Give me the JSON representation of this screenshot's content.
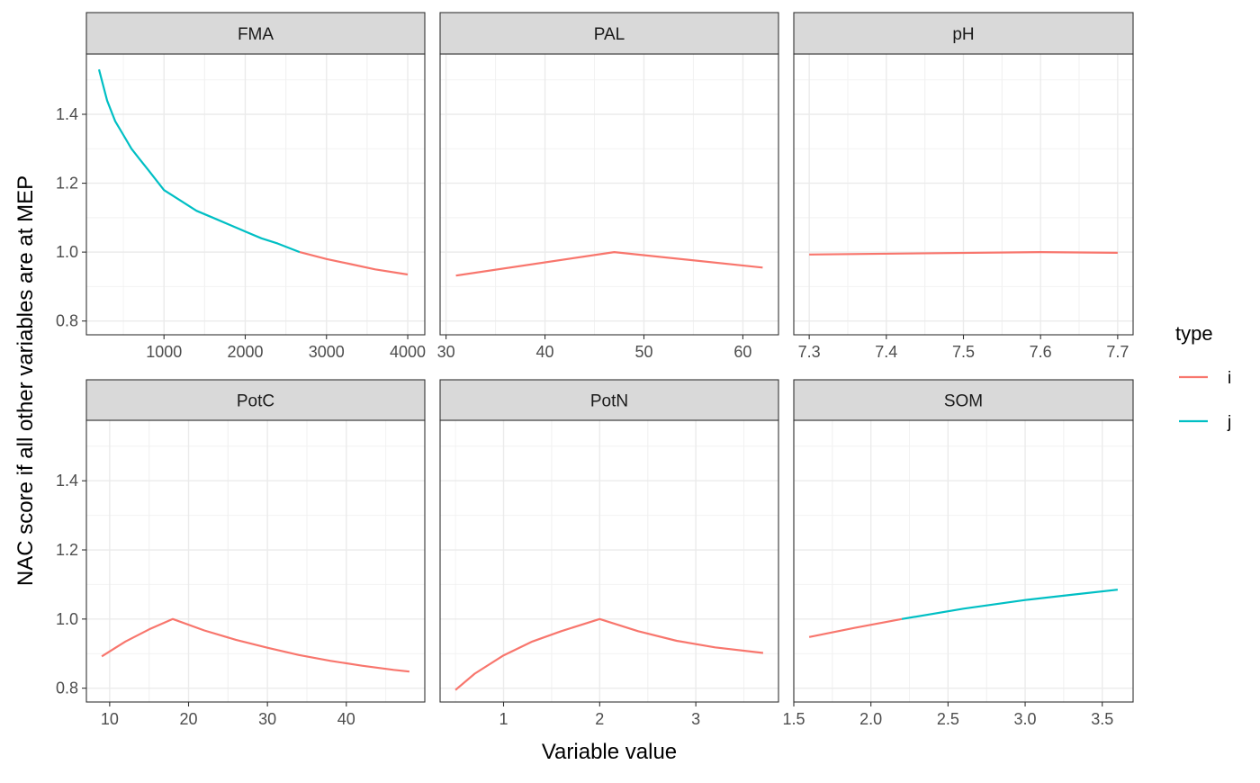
{
  "chart_data": {
    "type": "line",
    "xlabel": "Variable value",
    "ylabel": "NAC score if all other variables are at MEP",
    "ylim": [
      0.76,
      1.575
    ],
    "y_ticks": [
      0.8,
      1.0,
      1.2,
      1.4
    ],
    "y_tick_labels": [
      "0.8",
      "1.0",
      "1.2",
      "1.4"
    ],
    "grid": true,
    "legend": {
      "title": "type",
      "position": "right",
      "items": [
        {
          "key": "i",
          "label": "i",
          "color": "#F8766D"
        },
        {
          "key": "j",
          "label": "j",
          "color": "#00BFC4"
        }
      ]
    },
    "panels": [
      {
        "title": "FMA",
        "xlim": [
          45,
          4210
        ],
        "x_ticks": [
          1000,
          2000,
          3000,
          4000
        ],
        "x_tick_labels": [
          "1000",
          "2000",
          "3000",
          "4000"
        ],
        "series": [
          {
            "type": "j",
            "points": [
              [
                200,
                1.53
              ],
              [
                300,
                1.44
              ],
              [
                400,
                1.38
              ],
              [
                500,
                1.34
              ],
              [
                600,
                1.3
              ],
              [
                700,
                1.27
              ],
              [
                800,
                1.24
              ],
              [
                1000,
                1.18
              ],
              [
                1200,
                1.15
              ],
              [
                1400,
                1.12
              ],
              [
                1600,
                1.1
              ],
              [
                1800,
                1.08
              ],
              [
                2000,
                1.06
              ],
              [
                2200,
                1.04
              ],
              [
                2400,
                1.025
              ],
              [
                2670,
                1.0
              ]
            ]
          },
          {
            "type": "i",
            "points": [
              [
                2670,
                1.0
              ],
              [
                3000,
                0.98
              ],
              [
                3300,
                0.965
              ],
              [
                3600,
                0.95
              ],
              [
                4000,
                0.935
              ]
            ]
          }
        ]
      },
      {
        "title": "PAL",
        "xlim": [
          29.4,
          63.6
        ],
        "x_ticks": [
          30,
          40,
          50,
          60
        ],
        "x_tick_labels": [
          "30",
          "40",
          "50",
          "60"
        ],
        "series": [
          {
            "type": "i",
            "points": [
              [
                31,
                0.932
              ],
              [
                47,
                1.0
              ],
              [
                62,
                0.955
              ]
            ]
          }
        ]
      },
      {
        "title": "pH",
        "xlim": [
          7.28,
          7.72
        ],
        "x_ticks": [
          7.3,
          7.4,
          7.5,
          7.6,
          7.7
        ],
        "x_tick_labels": [
          "7.3",
          "7.4",
          "7.5",
          "7.6",
          "7.7"
        ],
        "series": [
          {
            "type": "i",
            "points": [
              [
                7.3,
                0.993
              ],
              [
                7.6,
                1.0
              ],
              [
                7.7,
                0.998
              ]
            ]
          }
        ]
      },
      {
        "title": "PotC",
        "xlim": [
          7.05,
          49.95
        ],
        "x_ticks": [
          10,
          20,
          30,
          40
        ],
        "x_tick_labels": [
          "10",
          "20",
          "30",
          "40"
        ],
        "series": [
          {
            "type": "i",
            "points": [
              [
                9,
                0.892
              ],
              [
                12,
                0.935
              ],
              [
                15,
                0.97
              ],
              [
                18,
                1.0
              ],
              [
                22,
                0.967
              ],
              [
                26,
                0.94
              ],
              [
                30,
                0.917
              ],
              [
                34,
                0.896
              ],
              [
                38,
                0.879
              ],
              [
                42,
                0.865
              ],
              [
                46,
                0.853
              ],
              [
                48,
                0.848
              ]
            ]
          }
        ]
      },
      {
        "title": "PotN",
        "xlim": [
          0.34,
          3.86
        ],
        "x_ticks": [
          1,
          2,
          3
        ],
        "x_tick_labels": [
          "1",
          "2",
          "3"
        ],
        "series": [
          {
            "type": "i",
            "points": [
              [
                0.5,
                0.795
              ],
              [
                0.7,
                0.842
              ],
              [
                1.0,
                0.895
              ],
              [
                1.3,
                0.935
              ],
              [
                1.6,
                0.965
              ],
              [
                2.0,
                1.0
              ],
              [
                2.4,
                0.965
              ],
              [
                2.8,
                0.937
              ],
              [
                3.2,
                0.918
              ],
              [
                3.7,
                0.902
              ]
            ]
          }
        ]
      },
      {
        "title": "SOM",
        "xlim": [
          1.5,
          3.7
        ],
        "x_ticks": [
          1.5,
          2.0,
          2.5,
          3.0,
          3.5
        ],
        "x_tick_labels": [
          "1.5",
          "2.0",
          "2.5",
          "3.0",
          "3.5"
        ],
        "series": [
          {
            "type": "i",
            "points": [
              [
                1.6,
                0.948
              ],
              [
                1.9,
                0.975
              ],
              [
                2.2,
                1.0
              ]
            ]
          },
          {
            "type": "j",
            "points": [
              [
                2.2,
                1.0
              ],
              [
                2.6,
                1.03
              ],
              [
                3.0,
                1.055
              ],
              [
                3.3,
                1.07
              ],
              [
                3.6,
                1.085
              ]
            ]
          }
        ]
      }
    ]
  }
}
